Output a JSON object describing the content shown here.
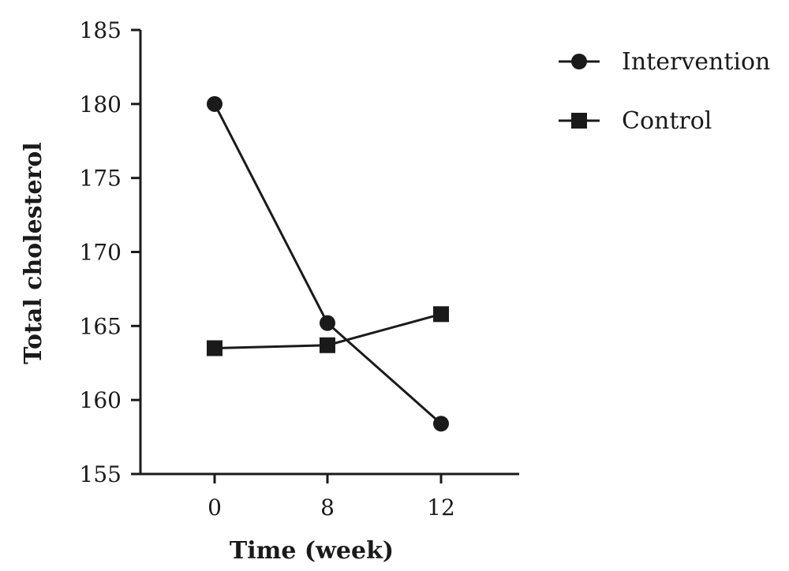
{
  "chart_data": {
    "type": "line",
    "xlabel": "Time (week)",
    "ylabel": "Total cholesterol",
    "x": [
      0,
      8,
      12
    ],
    "x_tick_labels": [
      "0",
      "8",
      "12"
    ],
    "ylim": [
      155,
      185
    ],
    "y_ticks": [
      155,
      160,
      165,
      170,
      175,
      180,
      185
    ],
    "grid": false,
    "legend_position": "top-right",
    "series": [
      {
        "name": "Intervention",
        "marker": "circle",
        "color": "#1a1a1a",
        "values": [
          180.0,
          165.2,
          158.4
        ]
      },
      {
        "name": "Control",
        "marker": "square",
        "color": "#1a1a1a",
        "values": [
          163.5,
          163.7,
          165.8
        ]
      }
    ]
  }
}
